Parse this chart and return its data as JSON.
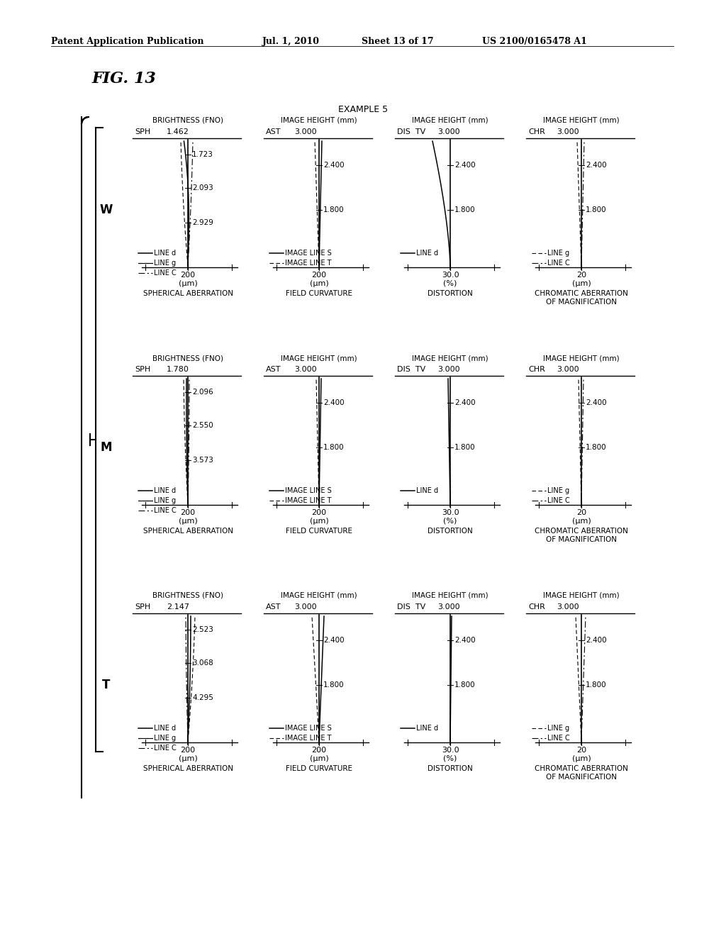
{
  "title_header": "Patent Application Publication",
  "date": "Jul. 1, 2010",
  "sheet": "Sheet 13 of 17",
  "patent_num": "US 2100/0165478 A1",
  "fig_title": "FIG. 13",
  "example_title": "EXAMPLE 5",
  "rows": [
    {
      "label": "W",
      "sph_fno": "1.462",
      "sph_brightness": [
        "1.723",
        "2.093",
        "2.929"
      ],
      "ast_heights": [
        "2.400",
        "1.800"
      ],
      "dis_heights": [
        "2.400",
        "1.800"
      ],
      "chr_heights": [
        "2.400",
        "1.800"
      ]
    },
    {
      "label": "M",
      "sph_fno": "1.780",
      "sph_brightness": [
        "2.096",
        "2.550",
        "3.573"
      ],
      "ast_heights": [
        "2.400",
        "1.800"
      ],
      "dis_heights": [
        "2.400",
        "1.800"
      ],
      "chr_heights": [
        "2.400",
        "1.800"
      ]
    },
    {
      "label": "T",
      "sph_fno": "2.147",
      "sph_brightness": [
        "2.523",
        "3.068",
        "4.295"
      ],
      "ast_heights": [
        "2.400",
        "1.800"
      ],
      "dis_heights": [
        "2.400",
        "1.800"
      ],
      "chr_heights": [
        "2.400",
        "1.800"
      ]
    }
  ],
  "background_color": "#ffffff"
}
